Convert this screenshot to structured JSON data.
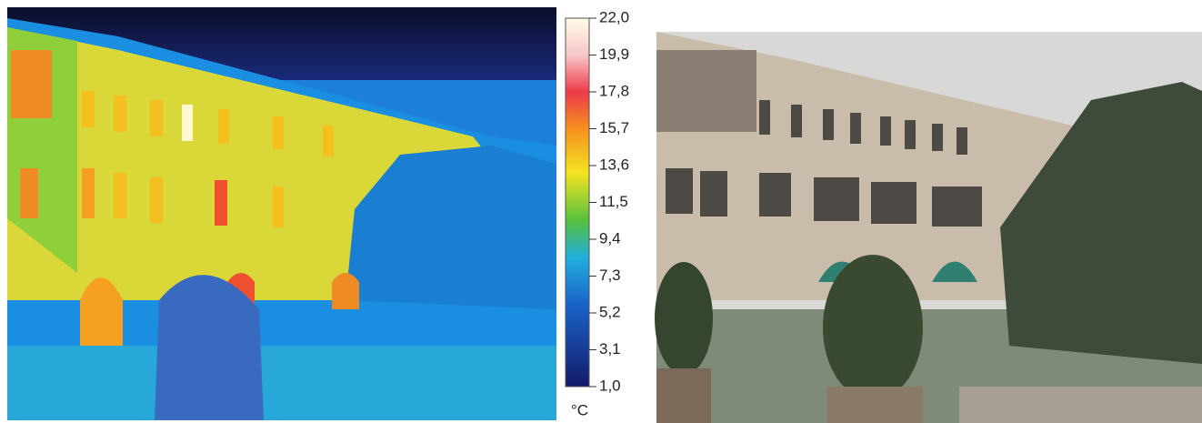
{
  "colorbar": {
    "unit": "°C",
    "range": [
      1.0,
      22.0
    ],
    "ticks": [
      {
        "value": 22.0,
        "label": "22,0"
      },
      {
        "value": 19.9,
        "label": "19,9"
      },
      {
        "value": 17.8,
        "label": "17,8"
      },
      {
        "value": 15.7,
        "label": "15,7"
      },
      {
        "value": 13.6,
        "label": "13,6"
      },
      {
        "value": 11.5,
        "label": "11,5"
      },
      {
        "value": 9.4,
        "label": "9,4"
      },
      {
        "value": 7.3,
        "label": "7,3"
      },
      {
        "value": 5.2,
        "label": "5,2"
      },
      {
        "value": 3.1,
        "label": "3,1"
      },
      {
        "value": 1.0,
        "label": "1,0"
      }
    ]
  }
}
